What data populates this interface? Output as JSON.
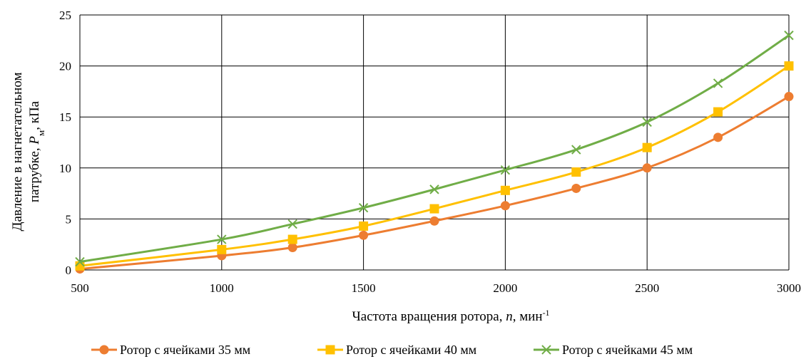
{
  "chart_data": {
    "type": "line",
    "x": [
      500,
      1000,
      1250,
      1500,
      1750,
      2000,
      2250,
      2500,
      2750,
      3000
    ],
    "xticks": [
      500,
      1000,
      1500,
      2000,
      2500,
      3000
    ],
    "yticks": [
      0,
      5,
      10,
      15,
      20,
      25
    ],
    "xlim": [
      500,
      3000
    ],
    "ylim": [
      0,
      25
    ],
    "grid": true,
    "legend_position": "bottom",
    "xlabel": {
      "main": "Частота вращения ротора, ",
      "var": "n",
      "unit": ", мин",
      "sup": "-1"
    },
    "ylabel": {
      "line1": "Давление в нагнетательном",
      "line2_pre": "патрубке, ",
      "line2_var": "P",
      "line2_sub": "м",
      "line2_post": ", кПа"
    },
    "series": [
      {
        "name": "Ротор с ячейками 35 мм",
        "color": "#ED7D31",
        "marker": "circle",
        "values": [
          0.1,
          1.4,
          2.2,
          3.4,
          4.8,
          6.3,
          8.0,
          10.0,
          13.0,
          17.0
        ]
      },
      {
        "name": "Ротор с ячейками 40 мм",
        "color": "#FFC000",
        "marker": "square",
        "values": [
          0.4,
          2.0,
          3.0,
          4.3,
          6.0,
          7.8,
          9.6,
          12.0,
          15.5,
          20.0
        ]
      },
      {
        "name": "Ротор с ячейками 45 мм",
        "color": "#70AD47",
        "marker": "x",
        "values": [
          0.8,
          3.0,
          4.5,
          6.1,
          7.9,
          9.8,
          11.8,
          14.5,
          18.3,
          23.0
        ]
      }
    ]
  }
}
